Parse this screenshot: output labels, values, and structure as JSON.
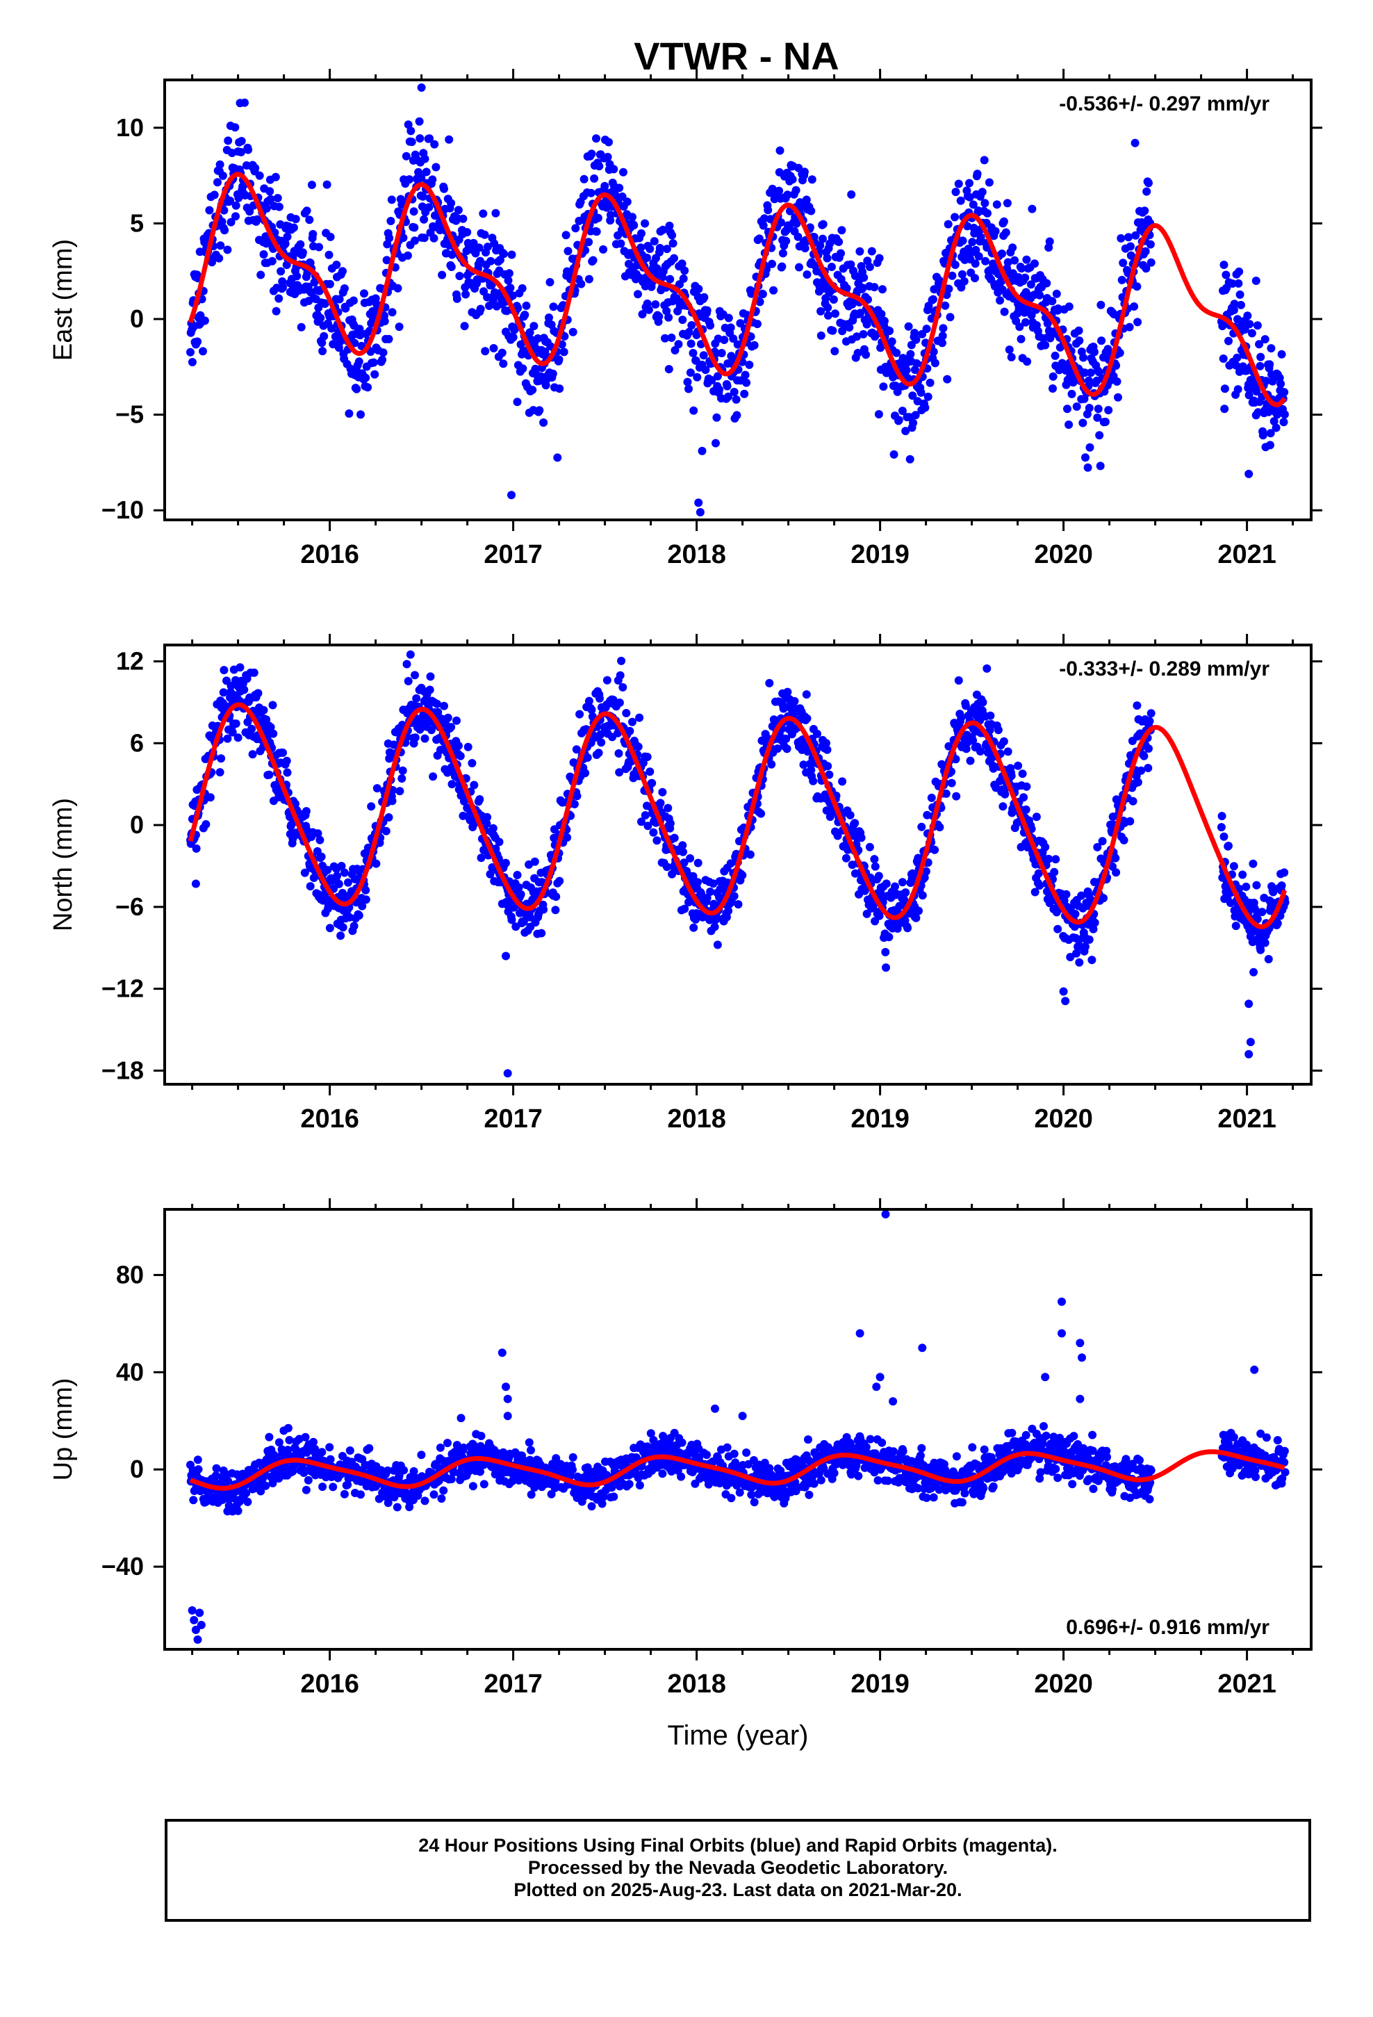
{
  "title": "VTWR - NA",
  "colors": {
    "final_orbits": "#0000ff",
    "model": "#ff0000"
  },
  "chart_data": [
    {
      "type": "scatter",
      "panel": "east",
      "ylabel": "East (mm)",
      "xlabel": "",
      "rate_text": "-0.536+/- 0.297 mm/yr",
      "xlim": [
        2015.1,
        2021.35
      ],
      "ylim": [
        -10.5,
        12.5
      ],
      "yticks": [
        10,
        5,
        0,
        -5,
        -10
      ],
      "xticks": [
        2016,
        2017,
        2018,
        2019,
        2020,
        2021
      ],
      "xtick_labels": [
        "2016",
        "2017",
        "2018",
        "2019",
        "2020",
        "2021"
      ],
      "data_range": [
        2015.24,
        2021.21
      ],
      "gaps": [
        [
          2020.48,
          2020.86
        ]
      ],
      "model": {
        "offset": 3.2,
        "trend": -0.536,
        "ann_amp": 3.6,
        "ann_phase": 0.33,
        "semi_amp": 1.6,
        "semi_phase": 0.33,
        "t0": 2015.24
      },
      "noise_sd": 1.5,
      "outliers": [
        [
          2016.5,
          12.1
        ],
        [
          2016.99,
          -9.2
        ],
        [
          2018.01,
          -9.6
        ],
        [
          2018.02,
          -10.1
        ],
        [
          2020.39,
          9.2
        ],
        [
          2021.05,
          2.0
        ],
        [
          2021.01,
          -8.1
        ],
        [
          2018.03,
          -6.9
        ]
      ],
      "series": [
        {
          "name": "Final Orbits (blue)",
          "kind": "points"
        },
        {
          "name": "",
          "kind": "line"
        }
      ]
    },
    {
      "type": "scatter",
      "panel": "north",
      "ylabel": "North (mm)",
      "xlabel": "",
      "rate_text": "-0.333+/- 0.289 mm/yr",
      "xlim": [
        2015.1,
        2021.35
      ],
      "ylim": [
        -19,
        13.2
      ],
      "yticks": [
        12,
        6,
        0,
        -6,
        -12,
        -18
      ],
      "xticks": [
        2016,
        2017,
        2018,
        2019,
        2020,
        2021
      ],
      "xtick_labels": [
        "2016",
        "2017",
        "2018",
        "2019",
        "2020",
        "2021"
      ],
      "data_range": [
        2015.24,
        2021.21
      ],
      "gaps": [
        [
          2020.48,
          2020.86
        ]
      ],
      "model": {
        "offset": 1.6,
        "trend": -0.333,
        "ann_amp": 7.0,
        "ann_phase": 0.29,
        "semi_amp": 0.9,
        "semi_phase": 0.3,
        "t0": 2015.24
      },
      "noise_sd": 1.3,
      "outliers": [
        [
          2016.97,
          -18.2
        ],
        [
          2016.96,
          -9.6
        ],
        [
          2016.44,
          12.5
        ],
        [
          2016.42,
          11.8
        ],
        [
          2020.0,
          -12.2
        ],
        [
          2020.01,
          -12.9
        ],
        [
          2021.01,
          -16.8
        ],
        [
          2021.01,
          -13.1
        ],
        [
          2021.02,
          -15.9
        ],
        [
          2015.27,
          -4.3
        ]
      ],
      "series": [
        {
          "name": "Final Orbits (blue)",
          "kind": "points"
        },
        {
          "name": "",
          "kind": "line"
        }
      ]
    },
    {
      "type": "scatter",
      "panel": "up",
      "ylabel": "Up (mm)",
      "xlabel": "Time (year)",
      "rate_text": "0.696+/- 0.916 mm/yr",
      "xlim": [
        2015.1,
        2021.35
      ],
      "ylim": [
        -74,
        107
      ],
      "yticks": [
        80,
        40,
        0,
        -40
      ],
      "xticks": [
        2016,
        2017,
        2018,
        2019,
        2020,
        2021
      ],
      "xtick_labels": [
        "2016",
        "2017",
        "2018",
        "2019",
        "2020",
        "2021"
      ],
      "data_range": [
        2015.24,
        2021.21
      ],
      "gaps": [
        [
          2020.48,
          2020.86
        ]
      ],
      "model": {
        "offset": -2.0,
        "trend": 0.696,
        "ann_amp": 5.2,
        "ann_phase": 0.62,
        "semi_amp": 1.2,
        "semi_phase": 0.1,
        "t0": 2015.24
      },
      "noise_sd": 4.2,
      "outliers": [
        [
          2015.25,
          -58
        ],
        [
          2015.26,
          -62
        ],
        [
          2015.27,
          -66
        ],
        [
          2015.28,
          -70
        ],
        [
          2015.29,
          -59
        ],
        [
          2015.3,
          -64
        ],
        [
          2016.94,
          48
        ],
        [
          2016.96,
          34
        ],
        [
          2016.97,
          29
        ],
        [
          2018.89,
          56
        ],
        [
          2019.03,
          105
        ],
        [
          2019.0,
          38
        ],
        [
          2018.98,
          34
        ],
        [
          2019.23,
          50
        ],
        [
          2019.07,
          28
        ],
        [
          2019.9,
          38
        ],
        [
          2019.99,
          69
        ],
        [
          2019.99,
          56
        ],
        [
          2020.09,
          52
        ],
        [
          2020.1,
          46
        ],
        [
          2020.09,
          29
        ],
        [
          2021.04,
          41
        ],
        [
          2018.1,
          25
        ],
        [
          2018.25,
          22
        ],
        [
          2016.97,
          22
        ]
      ],
      "series": [
        {
          "name": "Final Orbits (blue)",
          "kind": "points"
        },
        {
          "name": "",
          "kind": "line"
        }
      ]
    }
  ],
  "footer": {
    "line1": "24 Hour Positions Using Final Orbits (blue) and Rapid Orbits (magenta).",
    "line2": "Processed by the Nevada Geodetic Laboratory.",
    "line3": "Plotted on 2025-Aug-23. Last data on 2021-Mar-20."
  }
}
